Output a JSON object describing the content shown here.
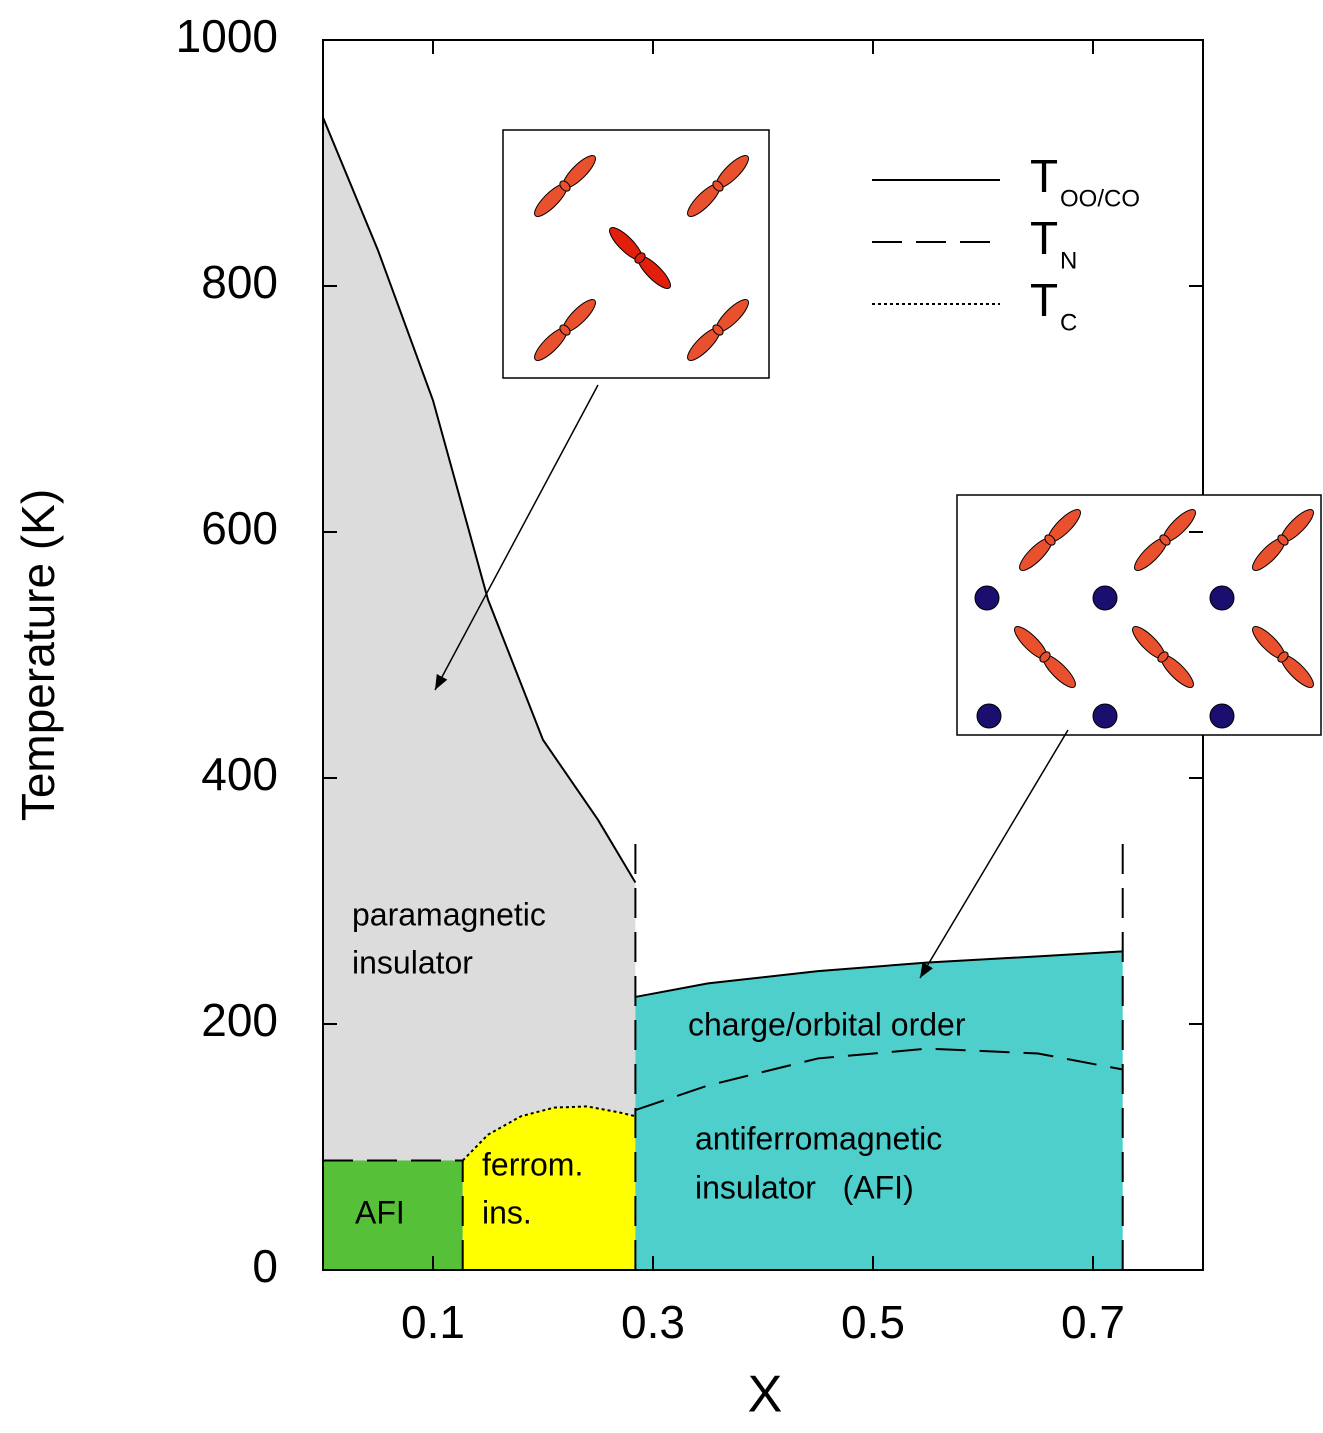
{
  "chart_data": {
    "type": "phase",
    "xlabel": "X",
    "ylabel": "Temperature  (K)",
    "xlim": [
      0,
      0.8
    ],
    "ylim": [
      0,
      1000
    ],
    "xticks": [
      0.1,
      0.3,
      0.5,
      0.7
    ],
    "yticks": [
      0,
      200,
      400,
      600,
      800,
      1000
    ],
    "regions": [
      {
        "color": "#dcdcdc",
        "x": [
          0,
          0,
          0.05,
          0.1,
          0.15,
          0.2,
          0.25,
          0.284,
          0.284
        ],
        "y": [
          0,
          937,
          829,
          707,
          545,
          431,
          366,
          315,
          0
        ]
      },
      {
        "color": "#55c038",
        "x": [
          0,
          0,
          0.127,
          0.127
        ],
        "y": [
          0,
          89,
          89,
          0
        ]
      },
      {
        "color": "#ffff00",
        "x": [
          0.127,
          0.127,
          0.15,
          0.18,
          0.21,
          0.24,
          0.27,
          0.284,
          0.284
        ],
        "y": [
          0,
          89,
          110,
          125,
          132,
          133,
          128,
          125,
          0
        ]
      },
      {
        "color": "#4ecfcc",
        "x": [
          0.284,
          0.284,
          0.35,
          0.45,
          0.55,
          0.65,
          0.727,
          0.727
        ],
        "y": [
          0,
          222,
          233,
          243,
          250,
          255,
          259,
          0
        ]
      }
    ],
    "series": [
      {
        "name": "T",
        "subscript": "OO/CO",
        "color": "#000000",
        "style": "solid",
        "x": [
          0,
          0.05,
          0.1,
          0.15,
          0.2,
          0.25,
          0.284,
          null,
          0.284,
          0.35,
          0.45,
          0.55,
          0.65,
          0.727
        ],
        "y": [
          937,
          829,
          707,
          545,
          431,
          366,
          315,
          null,
          222,
          233,
          243,
          250,
          255,
          259
        ]
      },
      {
        "name": "T",
        "subscript": "N",
        "color": "#000000",
        "style": "dashed",
        "x": [
          0,
          0.127,
          null,
          0.127,
          0.127,
          null,
          0.284,
          0.284,
          null,
          0.284,
          0.35,
          0.45,
          0.55,
          0.65,
          0.727,
          null,
          0.727,
          0.727
        ],
        "y": [
          89,
          89,
          null,
          0,
          89,
          null,
          0,
          354,
          null,
          130,
          150,
          172,
          180,
          176,
          163,
          null,
          0,
          354
        ]
      },
      {
        "name": "T",
        "subscript": "C",
        "color": "#000000",
        "style": "dotted",
        "x": [
          0.127,
          0.15,
          0.18,
          0.21,
          0.24,
          0.27,
          0.284
        ],
        "y": [
          89,
          110,
          125,
          132,
          133,
          128,
          125
        ]
      }
    ],
    "annotations": [
      "paramagnetic",
      "insulator",
      "AFI",
      "ferrom.",
      "ins.",
      "charge/orbital order",
      "antiferromagnetic",
      "insulator   (AFI)"
    ]
  }
}
